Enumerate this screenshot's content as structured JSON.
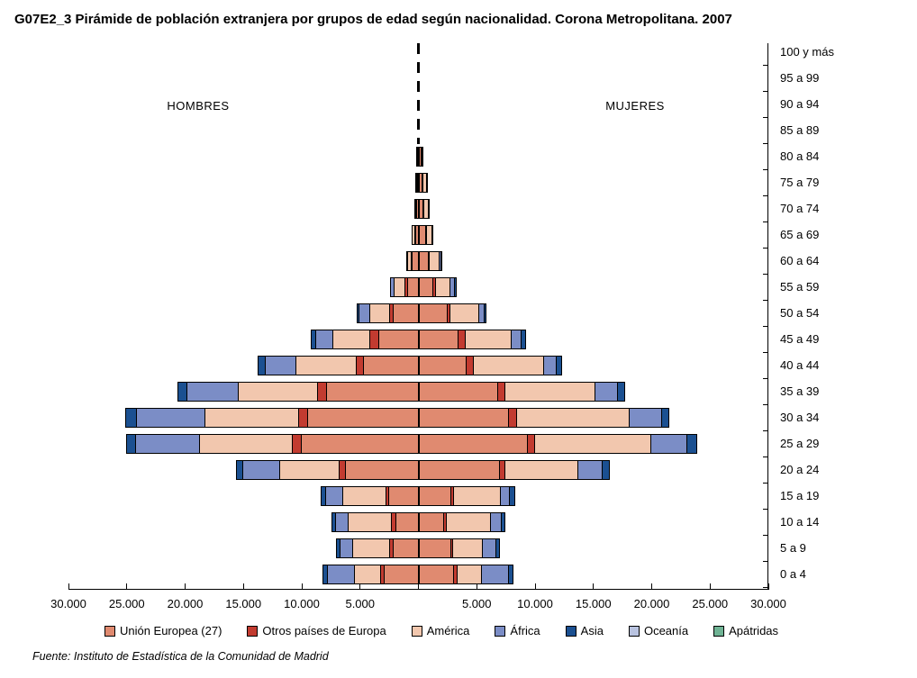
{
  "title": "G07E2_3 Pirámide de población extranjera por grupos de edad según nacionalidad. Corona Metropolitana. 2007",
  "left_label": "HOMBRES",
  "right_label": "MUJERES",
  "source": "Fuente: Instituto de Estadística de la Comunidad de Madrid",
  "chart_data": {
    "type": "bar",
    "subtype": "population_pyramid_stacked_horizontal",
    "title": "G07E2_3 Pirámide de población extranjera por grupos de edad según nacionalidad. Corona Metropolitana. 2007",
    "units": "persons (estimated from axis scale)",
    "legend_position": "bottom",
    "grid": false,
    "x_axis": {
      "tick_interval": 5000,
      "max_each_side": 30000,
      "tick_labels_left_to_right": [
        "30.000",
        "25.000",
        "20.000",
        "15.000",
        "10.000",
        "5.000",
        "",
        "5.000",
        "10.000",
        "15.000",
        "20.000",
        "25.000",
        "30.000"
      ]
    },
    "categories_top_to_bottom": [
      "100 y más",
      "95 a 99",
      "90 a 94",
      "85 a 89",
      "80 a 84",
      "75 a 79",
      "70 a 74",
      "65 a 69",
      "60 a 64",
      "55 a 59",
      "50 a 54",
      "45 a 49",
      "40 a 44",
      "35 a 39",
      "30 a 34",
      "25 a 29",
      "20 a 24",
      "15 a 19",
      "10 a 14",
      "5 a 9",
      "0 a 4"
    ],
    "series": [
      {
        "name": "Unión Europea (27)",
        "color": "#E08A70",
        "men": [
          0,
          0,
          0,
          0,
          50,
          120,
          180,
          280,
          550,
          1000,
          2200,
          3450,
          4750,
          7900,
          9550,
          10050,
          6300,
          2550,
          2000,
          2200,
          2950
        ],
        "women": [
          0,
          0,
          0,
          0,
          250,
          350,
          450,
          650,
          900,
          1300,
          2500,
          3450,
          4150,
          6850,
          7750,
          9350,
          7000,
          2800,
          2200,
          2800,
          3050
        ]
      },
      {
        "name": "Otros países de Europa",
        "color": "#C23B30",
        "men": [
          0,
          0,
          0,
          0,
          50,
          60,
          80,
          120,
          150,
          250,
          400,
          850,
          700,
          850,
          850,
          850,
          600,
          350,
          400,
          350,
          400
        ],
        "women": [
          0,
          0,
          0,
          0,
          50,
          50,
          80,
          100,
          150,
          250,
          300,
          700,
          700,
          700,
          750,
          700,
          550,
          350,
          300,
          250,
          350
        ]
      },
      {
        "name": "América",
        "color": "#F2C7AE",
        "men": [
          0,
          0,
          0,
          0,
          0,
          100,
          180,
          300,
          400,
          1050,
          1800,
          3250,
          5250,
          6900,
          8100,
          8050,
          5150,
          3800,
          3800,
          3300,
          2300
        ],
        "women": [
          0,
          0,
          0,
          0,
          200,
          350,
          430,
          550,
          900,
          1350,
          2550,
          4000,
          6100,
          7800,
          9750,
          10050,
          6350,
          4100,
          3850,
          2650,
          2200
        ]
      },
      {
        "name": "África",
        "color": "#7B8DC6",
        "men": [
          0,
          0,
          0,
          0,
          0,
          0,
          0,
          0,
          100,
          350,
          1000,
          1550,
          2700,
          4500,
          5950,
          5600,
          3250,
          1550,
          1150,
          1150,
          2450
        ],
        "women": [
          0,
          0,
          0,
          0,
          0,
          50,
          100,
          150,
          250,
          450,
          550,
          900,
          1100,
          2000,
          2900,
          3200,
          2150,
          850,
          1000,
          1250,
          2400
        ]
      },
      {
        "name": "Asia",
        "color": "#1B5091",
        "men": [
          0,
          0,
          0,
          0,
          0,
          0,
          0,
          0,
          0,
          0,
          200,
          450,
          700,
          850,
          1000,
          850,
          650,
          450,
          400,
          400,
          450
        ],
        "women": [
          0,
          0,
          0,
          0,
          0,
          0,
          0,
          0,
          50,
          250,
          250,
          500,
          550,
          650,
          650,
          900,
          700,
          500,
          400,
          350,
          450
        ]
      },
      {
        "name": "Oceanía",
        "color": "#B9C3E0",
        "men": [
          0,
          0,
          0,
          0,
          0,
          0,
          0,
          0,
          0,
          0,
          0,
          0,
          0,
          0,
          0,
          0,
          0,
          0,
          0,
          0,
          0
        ],
        "women": [
          0,
          0,
          0,
          0,
          0,
          0,
          0,
          0,
          0,
          0,
          0,
          0,
          0,
          0,
          0,
          0,
          0,
          0,
          0,
          0,
          0
        ]
      },
      {
        "name": "Apátridas",
        "color": "#6FB394",
        "men": [
          0,
          0,
          0,
          0,
          0,
          0,
          0,
          0,
          0,
          0,
          0,
          0,
          0,
          0,
          0,
          0,
          0,
          0,
          0,
          0,
          0
        ],
        "women": [
          0,
          0,
          0,
          0,
          0,
          0,
          0,
          0,
          0,
          0,
          0,
          0,
          0,
          0,
          0,
          0,
          0,
          0,
          0,
          0,
          0
        ]
      }
    ]
  },
  "colors": {
    "axis": "#000000",
    "bar_border": "#000000",
    "background": "#ffffff"
  }
}
